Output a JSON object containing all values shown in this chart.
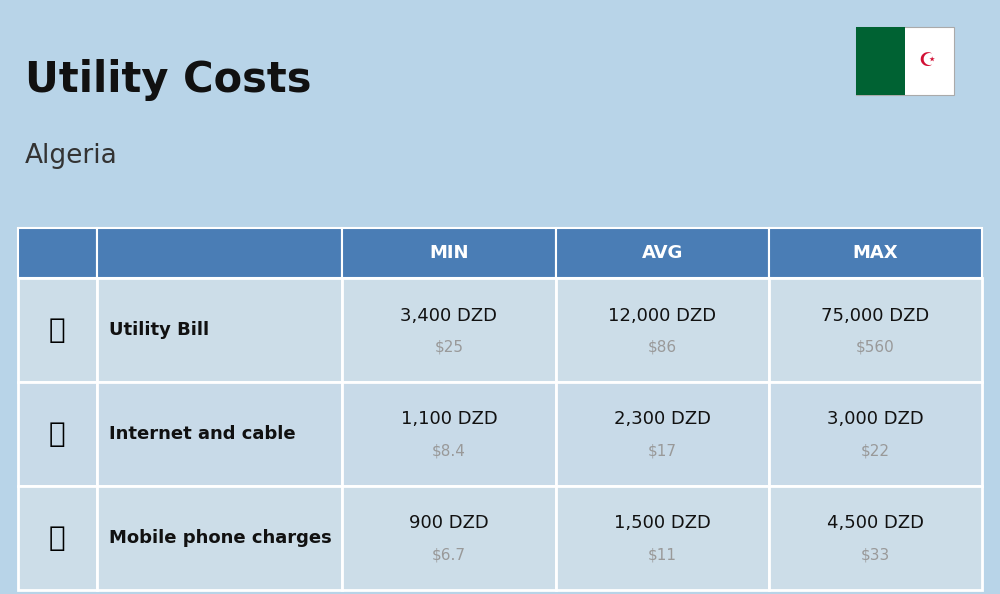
{
  "title": "Utility Costs",
  "subtitle": "Algeria",
  "background_color": "#b8d4e8",
  "header_bg_color": "#4a7db5",
  "header_text_color": "#ffffff",
  "row_bg_color_1": "#c5daea",
  "row_bg_color_2": "#d0e3f0",
  "border_color": "#ffffff",
  "columns": [
    "MIN",
    "AVG",
    "MAX"
  ],
  "rows": [
    {
      "label": "Utility Bill",
      "min_dzd": "3,400 DZD",
      "min_usd": "$25",
      "avg_dzd": "12,000 DZD",
      "avg_usd": "$86",
      "max_dzd": "75,000 DZD",
      "max_usd": "$560"
    },
    {
      "label": "Internet and cable",
      "min_dzd": "1,100 DZD",
      "min_usd": "$8.4",
      "avg_dzd": "2,300 DZD",
      "avg_usd": "$17",
      "max_dzd": "3,000 DZD",
      "max_usd": "$22"
    },
    {
      "label": "Mobile phone charges",
      "min_dzd": "900 DZD",
      "min_usd": "$6.7",
      "avg_dzd": "1,500 DZD",
      "avg_usd": "$11",
      "max_dzd": "4,500 DZD",
      "max_usd": "$33"
    }
  ],
  "title_fontsize": 30,
  "subtitle_fontsize": 19,
  "header_fontsize": 13,
  "label_fontsize": 13,
  "value_fontsize": 13,
  "usd_fontsize": 11,
  "usd_color": "#999999",
  "title_color": "#111111",
  "subtitle_color": "#333333",
  "label_color": "#111111",
  "value_color": "#111111",
  "flag_green": "#006233",
  "flag_white": "#ffffff",
  "flag_red": "#d21034"
}
